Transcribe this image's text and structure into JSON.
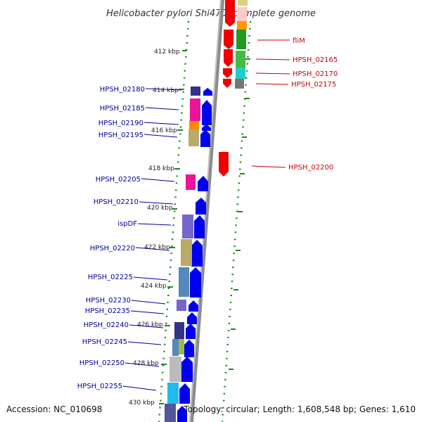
{
  "title": "Helicobacter pylori Shi470, complete genome",
  "footer": {
    "accession": "Accession: NC_010698",
    "topology": "Topology: circular; Length: 1,608,548 bp; Genes: 1,610"
  },
  "colors": {
    "forward_arrow": "#0000ee",
    "reverse_arrow": "#ee0000",
    "left_label": "#000099",
    "right_label": "#cc0000",
    "ruler_tick": "#228822",
    "backbone": "#8c8c8c"
  },
  "kbp_labels": [
    {
      "text": "412 kbp"
    },
    {
      "text": "414 kbp"
    },
    {
      "text": "416 kbp"
    },
    {
      "text": "418 kbp"
    },
    {
      "text": "420 kbp"
    },
    {
      "text": "422 kbp"
    },
    {
      "text": "424 kbp"
    },
    {
      "text": "426 kbp"
    },
    {
      "text": "428 kbp"
    },
    {
      "text": "430 kbp"
    }
  ],
  "left_genes": [
    {
      "name": "HPSH_02180"
    },
    {
      "name": "HPSH_02185"
    },
    {
      "name": "HPSH_02190"
    },
    {
      "name": "HPSH_02195"
    },
    {
      "name": "HPSH_02205"
    },
    {
      "name": "HPSH_02210"
    },
    {
      "name": "ispDF"
    },
    {
      "name": "HPSH_02220"
    },
    {
      "name": "HPSH_02225"
    },
    {
      "name": "HPSH_02230"
    },
    {
      "name": "HPSH_02235"
    },
    {
      "name": "HPSH_02240"
    },
    {
      "name": "HPSH_02245"
    },
    {
      "name": "HPSH_02250"
    },
    {
      "name": "HPSH_02255"
    }
  ],
  "right_genes": [
    {
      "name": "fliM"
    },
    {
      "name": "HPSH_02165"
    },
    {
      "name": "HPSH_02170"
    },
    {
      "name": "HPSH_02175"
    },
    {
      "name": "HPSH_02200"
    }
  ]
}
